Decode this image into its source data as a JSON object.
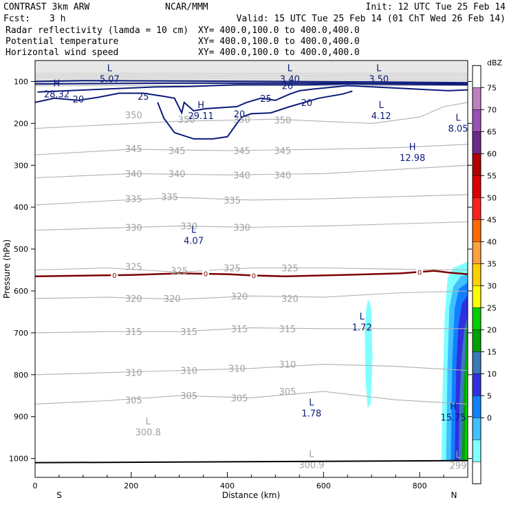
{
  "header": {
    "model": "CONTRAST  3km ARW",
    "org": "NCAR/MMM",
    "init": "Init: 12 UTC Tue 25 Feb 14",
    "fcst_label": "Fcst:",
    "fcst_value": "3 h",
    "valid": "Valid: 15 UTC Tue 25 Feb 14 (01 ChT Wed 26 Feb 14)"
  },
  "legend_rows": [
    {
      "field": "Radar reflectivity (lamda = 10 cm)",
      "xy": "XY= 400.0,100.0 to 400.0,400.0",
      "color": "#000000"
    },
    {
      "field": "Potential temperature",
      "xy": "XY= 400.0,100.0 to 400.0,400.0",
      "color": "#c8c8c8"
    },
    {
      "field": "Horizontal wind speed",
      "xy": "XY= 400.0,100.0 to 400.0,400.0",
      "color": "#0b1a7a"
    }
  ],
  "chart_data": {
    "type": "cross-section",
    "xlabel": "Distance (km)",
    "ylabel": "Pressure (hPa)",
    "xlim": [
      0,
      900
    ],
    "ylim": [
      1045,
      50
    ],
    "xticks": [
      0,
      200,
      400,
      600,
      800
    ],
    "yticks": [
      100,
      200,
      300,
      400,
      500,
      600,
      700,
      800,
      900,
      1000
    ],
    "x_end_labels": {
      "left": "S",
      "right": "N"
    },
    "colorbar": {
      "units": "dBZ",
      "levels": [
        "75",
        "70",
        "65",
        "60",
        "55",
        "50",
        "45",
        "40",
        "35",
        "30",
        "25",
        "20",
        "15",
        "10",
        "5",
        "0"
      ],
      "colors": [
        "#ffffff",
        "#c080c0",
        "#9a50b4",
        "#6a2a8a",
        "#b00000",
        "#d80000",
        "#ff2020",
        "#ff6a00",
        "#ffa040",
        "#ffd000",
        "#ffff00",
        "#00d000",
        "#00a000",
        "#3a7ab8",
        "#3030e0",
        "#1080ff",
        "#40c0ff",
        "#80ffff",
        "#ffffff"
      ]
    },
    "theta_labels": [
      {
        "v": "350",
        "x": 205,
        "p": 180
      },
      {
        "v": "350",
        "x": 315,
        "p": 190
      },
      {
        "v": "350",
        "x": 430,
        "p": 190
      },
      {
        "v": "350",
        "x": 515,
        "p": 192
      },
      {
        "v": "345",
        "x": 205,
        "p": 260
      },
      {
        "v": "345",
        "x": 295,
        "p": 265
      },
      {
        "v": "345",
        "x": 430,
        "p": 265
      },
      {
        "v": "345",
        "x": 515,
        "p": 265
      },
      {
        "v": "340",
        "x": 205,
        "p": 320
      },
      {
        "v": "340",
        "x": 295,
        "p": 320
      },
      {
        "v": "340",
        "x": 430,
        "p": 323
      },
      {
        "v": "340",
        "x": 515,
        "p": 323
      },
      {
        "v": "335",
        "x": 205,
        "p": 380
      },
      {
        "v": "335",
        "x": 280,
        "p": 375
      },
      {
        "v": "335",
        "x": 410,
        "p": 383
      },
      {
        "v": "330",
        "x": 205,
        "p": 448
      },
      {
        "v": "330",
        "x": 320,
        "p": 445
      },
      {
        "v": "330",
        "x": 430,
        "p": 448
      },
      {
        "v": "325",
        "x": 205,
        "p": 542
      },
      {
        "v": "325",
        "x": 300,
        "p": 552
      },
      {
        "v": "325",
        "x": 410,
        "p": 545
      },
      {
        "v": "325",
        "x": 530,
        "p": 545
      },
      {
        "v": "320",
        "x": 205,
        "p": 618
      },
      {
        "v": "320",
        "x": 285,
        "p": 618
      },
      {
        "v": "320",
        "x": 425,
        "p": 612
      },
      {
        "v": "320",
        "x": 530,
        "p": 618
      },
      {
        "v": "315",
        "x": 205,
        "p": 697
      },
      {
        "v": "315",
        "x": 320,
        "p": 697
      },
      {
        "v": "315",
        "x": 425,
        "p": 690
      },
      {
        "v": "315",
        "x": 525,
        "p": 690
      },
      {
        "v": "310",
        "x": 205,
        "p": 795
      },
      {
        "v": "310",
        "x": 320,
        "p": 790
      },
      {
        "v": "310",
        "x": 420,
        "p": 785
      },
      {
        "v": "310",
        "x": 525,
        "p": 775
      },
      {
        "v": "305",
        "x": 205,
        "p": 860
      },
      {
        "v": "305",
        "x": 320,
        "p": 850
      },
      {
        "v": "305",
        "x": 425,
        "p": 855
      },
      {
        "v": "305",
        "x": 525,
        "p": 840
      }
    ],
    "theta_extrema": [
      {
        "tag": "L",
        "v": "300.8",
        "x": 235,
        "p": 925
      },
      {
        "tag": "L",
        "v": "300.9",
        "x": 575,
        "p": 1003
      },
      {
        "tag": "L",
        "v": "299",
        "x": 880,
        "p": 1005
      }
    ],
    "wind_labels": [
      {
        "v": "20",
        "x": 90,
        "p": 142
      },
      {
        "v": "25",
        "x": 225,
        "p": 135
      },
      {
        "v": "25",
        "x": 480,
        "p": 140
      },
      {
        "v": "20",
        "x": 525,
        "p": 110
      },
      {
        "v": "20",
        "x": 565,
        "p": 150
      },
      {
        "v": "20",
        "x": 425,
        "p": 177
      }
    ],
    "wind_extrema": [
      {
        "tag": "L",
        "v": "5.07",
        "x": 155,
        "p": 82
      },
      {
        "tag": "L",
        "v": "3.40",
        "x": 530,
        "p": 82
      },
      {
        "tag": "L",
        "v": "3.50",
        "x": 715,
        "p": 82
      },
      {
        "tag": "H",
        "v": "28.32",
        "x": 45,
        "p": 118
      },
      {
        "tag": "H",
        "v": "29.11",
        "x": 345,
        "p": 170
      },
      {
        "tag": "L",
        "v": "4.12",
        "x": 720,
        "p": 170
      },
      {
        "tag": "L",
        "v": "8.05",
        "x": 880,
        "p": 200
      },
      {
        "tag": "H",
        "v": "12.98",
        "x": 785,
        "p": 270
      },
      {
        "tag": "L",
        "v": "4.07",
        "x": 330,
        "p": 468
      },
      {
        "tag": "L",
        "v": "1.72",
        "x": 680,
        "p": 675
      },
      {
        "tag": "L",
        "v": "1.78",
        "x": 575,
        "p": 880
      },
      {
        "tag": "H",
        "v": "15.75",
        "x": 870,
        "p": 890
      }
    ],
    "freezing_level_labels": [
      {
        "v": "0",
        "x": 165,
        "p": 562
      },
      {
        "v": "0",
        "x": 355,
        "p": 558
      },
      {
        "v": "0",
        "x": 455,
        "p": 563
      },
      {
        "v": "0",
        "x": 800,
        "p": 555
      }
    ]
  }
}
